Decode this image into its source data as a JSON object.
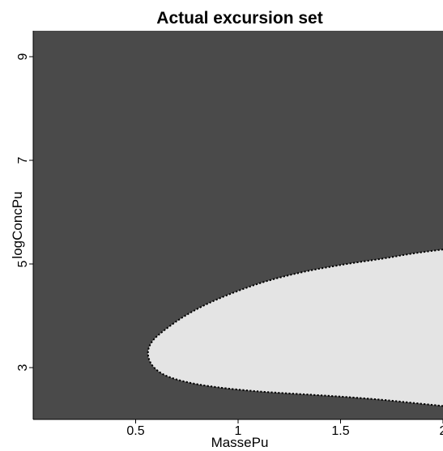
{
  "chart_data": {
    "type": "heatmap",
    "title": "Actual excursion set",
    "xlabel": "MassePu",
    "ylabel": "logConcPu",
    "xlim": [
      0.0,
      2.0
    ],
    "ylim": [
      2.0,
      9.5
    ],
    "x_ticks": [
      {
        "value": 0.5,
        "label": "0.5"
      },
      {
        "value": 1.0,
        "label": "1"
      },
      {
        "value": 1.5,
        "label": "1.5"
      },
      {
        "value": 2.0,
        "label": "2"
      }
    ],
    "y_ticks": [
      {
        "value": 3,
        "label": "3"
      },
      {
        "value": 5,
        "label": "5"
      },
      {
        "value": 7,
        "label": "7"
      },
      {
        "value": 9,
        "label": "9"
      }
    ],
    "grid": false,
    "colors": {
      "background": "#4a4a4a",
      "excursion_set": "#e4e4e4",
      "boundary": "#000000"
    },
    "excursion_boundary": [
      {
        "x": 2.0,
        "y": 5.28
      },
      {
        "x": 1.85,
        "y": 5.2
      },
      {
        "x": 1.7,
        "y": 5.1
      },
      {
        "x": 1.5,
        "y": 4.98
      },
      {
        "x": 1.3,
        "y": 4.83
      },
      {
        "x": 1.1,
        "y": 4.62
      },
      {
        "x": 0.9,
        "y": 4.32
      },
      {
        "x": 0.75,
        "y": 4.02
      },
      {
        "x": 0.64,
        "y": 3.72
      },
      {
        "x": 0.58,
        "y": 3.5
      },
      {
        "x": 0.56,
        "y": 3.28
      },
      {
        "x": 0.58,
        "y": 3.05
      },
      {
        "x": 0.64,
        "y": 2.86
      },
      {
        "x": 0.75,
        "y": 2.72
      },
      {
        "x": 0.9,
        "y": 2.62
      },
      {
        "x": 1.1,
        "y": 2.54
      },
      {
        "x": 1.3,
        "y": 2.49
      },
      {
        "x": 1.5,
        "y": 2.44
      },
      {
        "x": 1.7,
        "y": 2.38
      },
      {
        "x": 1.85,
        "y": 2.32
      },
      {
        "x": 2.0,
        "y": 2.26
      }
    ]
  }
}
